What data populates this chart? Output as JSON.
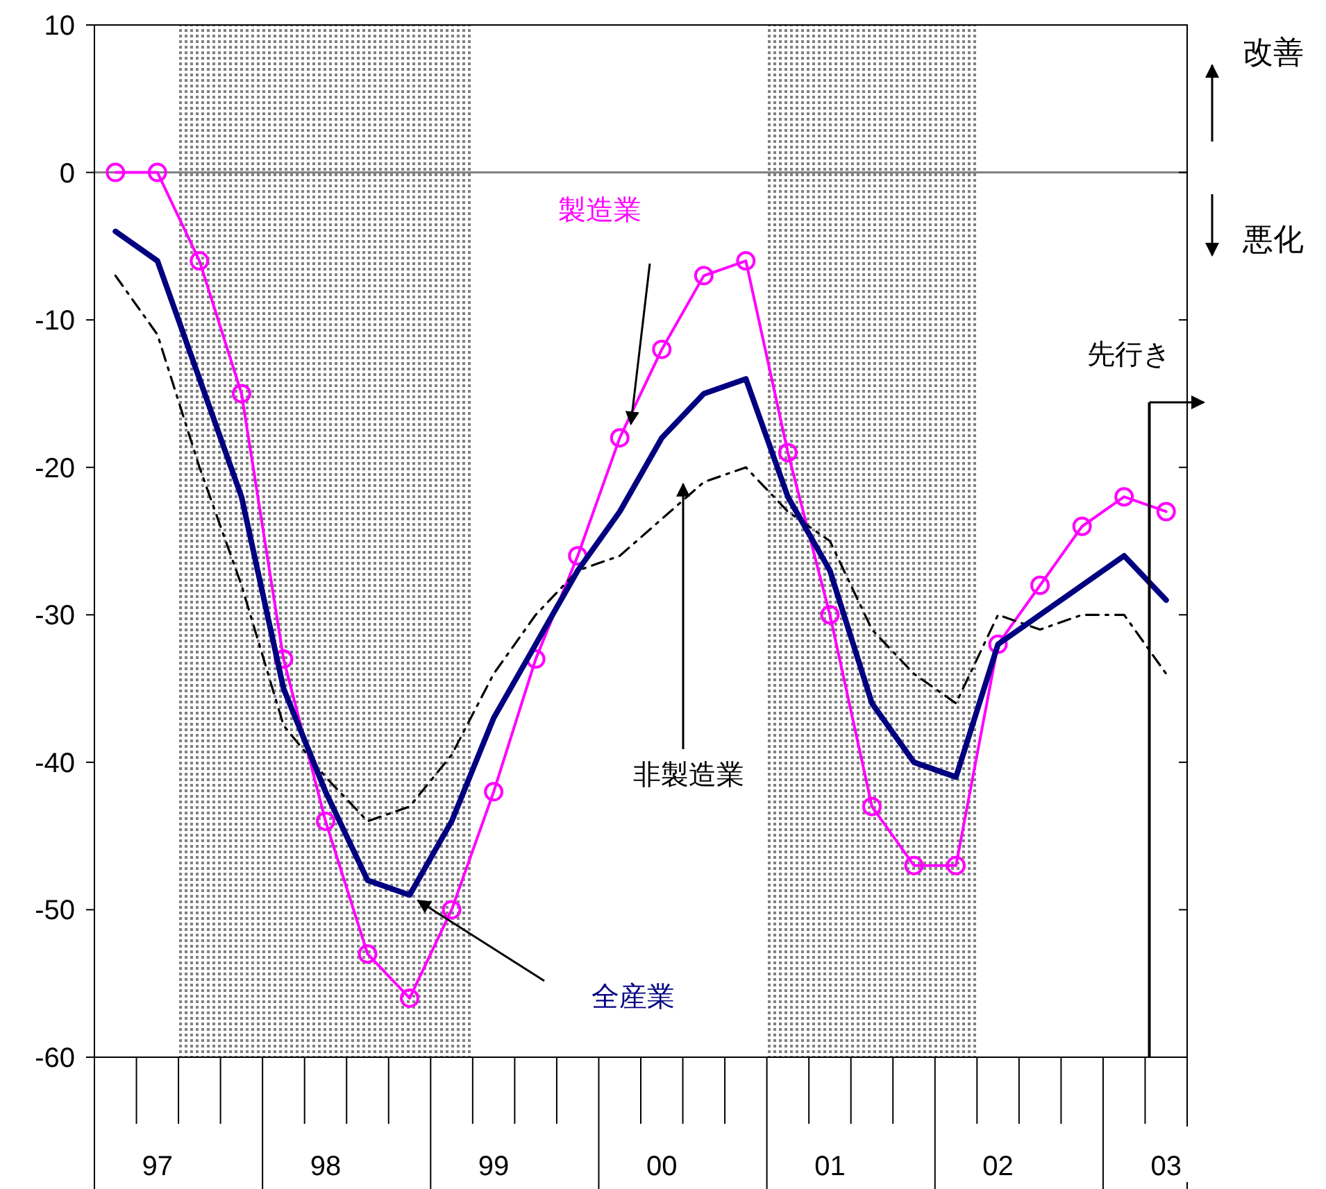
{
  "chart_data": {
    "type": "line",
    "categories": [
      null,
      "97",
      null,
      null,
      null,
      "98",
      null,
      null,
      null,
      "99",
      null,
      null,
      null,
      "00",
      null,
      null,
      null,
      "01",
      null,
      null,
      null,
      "02",
      null,
      null,
      null,
      "03"
    ],
    "series": [
      {
        "name": "製造業",
        "color": "#ff00ff",
        "marker": "circle",
        "line_style": "solid",
        "values": [
          0,
          0,
          -6,
          -15,
          -33,
          -44,
          -53,
          -56,
          -50,
          -42,
          -33,
          -26,
          -18,
          -12,
          -7,
          -6,
          -19,
          -30,
          -43,
          -47,
          -47,
          -32,
          -28,
          -24,
          -22,
          -23
        ]
      },
      {
        "name": "非製造業",
        "color": "#000000",
        "marker": "none",
        "line_style": "dashed",
        "values": [
          -7,
          -11,
          -20,
          -28,
          -37.5,
          -41,
          -44,
          -43,
          -39.5,
          -34,
          -30,
          -27,
          -26,
          -23.5,
          -21,
          -20,
          -23,
          -25,
          -31,
          -34,
          -36,
          -30,
          -31,
          -30,
          -30,
          -34
        ]
      },
      {
        "name": "全産業",
        "color": "#000080",
        "marker": "none",
        "line_style": "solid",
        "values": [
          -4,
          -6,
          -14,
          -22,
          -35,
          -42,
          -48,
          -49,
          -44,
          -37,
          -32,
          -27,
          -23,
          -18,
          -15,
          -14,
          -22,
          -27,
          -36,
          -40,
          -41,
          -32,
          -30,
          -28,
          -26,
          -29
        ]
      }
    ],
    "ylim": [
      -60,
      10
    ],
    "yticks": [
      10,
      0,
      -10,
      -20,
      -30,
      -40,
      -50,
      -60
    ],
    "ref_lines": [
      {
        "axis": "y",
        "value": 0,
        "color": "#808080"
      }
    ],
    "annotations": [
      "改善",
      "悪化",
      "先行き"
    ]
  }
}
